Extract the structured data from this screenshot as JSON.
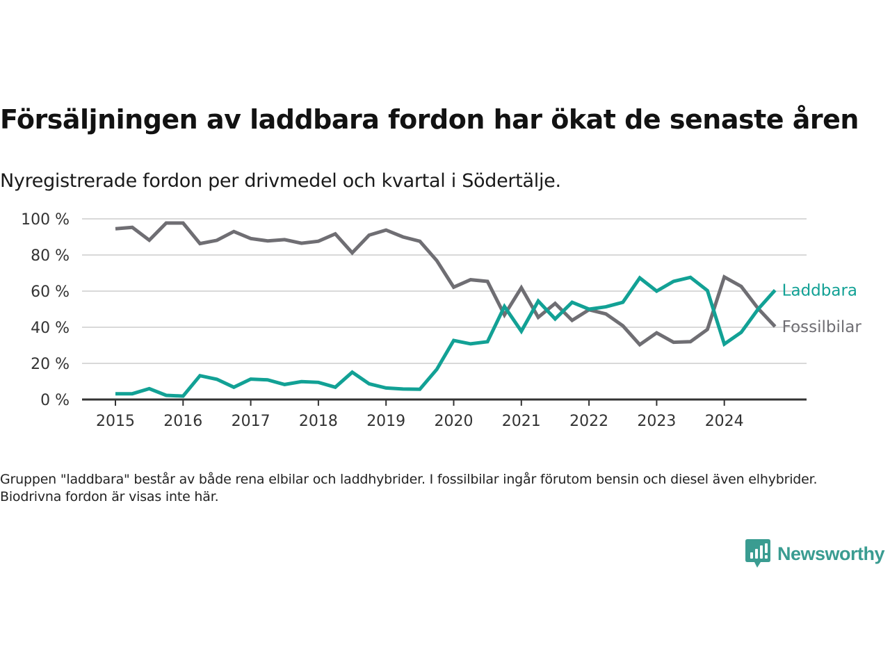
{
  "header": {
    "title": "Försäljningen av laddbara fordon har ökat de senaste åren",
    "subtitle": "Nyregistrerade fordon per drivmedel och kvartal i Södertälje."
  },
  "footer": {
    "note": "Gruppen \"laddbara\" består av både rena elbilar och laddhybrider. I fossilbilar ingår förutom bensin och diesel även elhybrider. Biodrivna fordon är visas inte här.",
    "brand": "Newsworthy",
    "brand_icon": "newsworthy-logo-icon",
    "brand_color": "#3a9c91"
  },
  "chart_data": {
    "type": "line",
    "title": "Försäljningen av laddbara fordon har ökat de senaste åren",
    "subtitle": "Nyregistrerade fordon per drivmedel och kvartal i Södertälje.",
    "xlabel": "",
    "ylabel": "",
    "x_start": "2015-Q1",
    "x_frequency": "quarter",
    "x_ticks": [
      "2015",
      "2016",
      "2017",
      "2018",
      "2019",
      "2020",
      "2021",
      "2022",
      "2023",
      "2024"
    ],
    "y_ticks": [
      "0 %",
      "20 %",
      "40 %",
      "60 %",
      "80 %",
      "100 %"
    ],
    "ylim": [
      0,
      100
    ],
    "grid": true,
    "legend": "direct-labels-right",
    "series": [
      {
        "name": "Laddbara",
        "color": "#12a195",
        "values": [
          3.2,
          3.2,
          6.0,
          2.3,
          1.9,
          13.2,
          11.2,
          6.8,
          11.3,
          10.9,
          8.3,
          9.9,
          9.5,
          6.8,
          15.1,
          8.7,
          6.4,
          5.8,
          5.7,
          16.7,
          32.7,
          30.8,
          32.0,
          51.5,
          37.8,
          54.5,
          44.6,
          53.8,
          50.0,
          51.3,
          53.8,
          67.3,
          60.0,
          65.4,
          67.6,
          60.3,
          30.7,
          37.2,
          50.0,
          60.5
        ]
      },
      {
        "name": "Fossilbilar",
        "color": "#6f6e73",
        "values": [
          94.5,
          95.3,
          88.2,
          97.7,
          97.7,
          86.3,
          88.1,
          93.0,
          89.1,
          87.8,
          88.5,
          86.5,
          87.6,
          91.7,
          81.2,
          91.0,
          93.8,
          90.0,
          87.6,
          76.9,
          62.2,
          66.3,
          65.4,
          46.8,
          61.9,
          45.5,
          53.2,
          43.8,
          49.7,
          47.4,
          40.8,
          30.4,
          36.9,
          31.7,
          32.0,
          38.8,
          67.8,
          62.6,
          50.4,
          40.4
        ]
      }
    ]
  }
}
